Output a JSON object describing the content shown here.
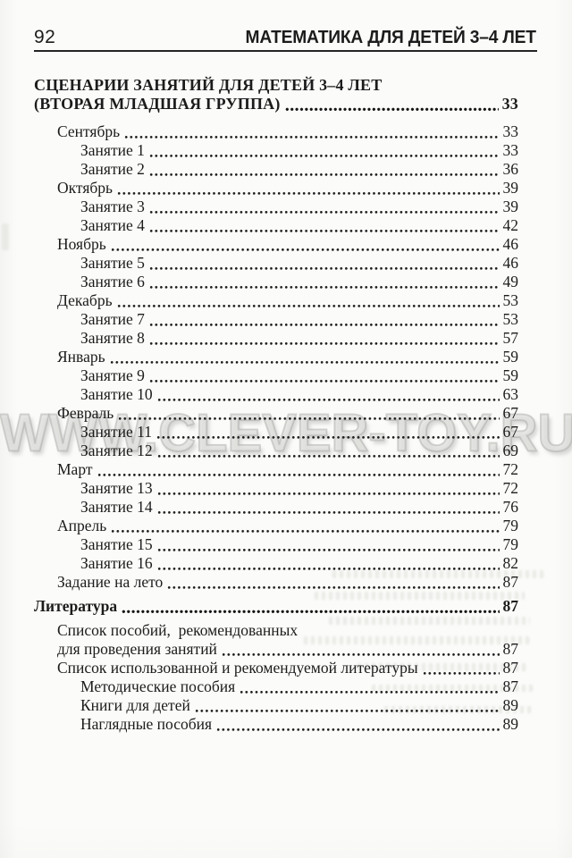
{
  "ink_color": "#1c1c1c",
  "watermark_color": "#c9c9c7",
  "header": {
    "page_number": "92",
    "running_title": "МАТЕМАТИКА ДЛЯ ДЕТЕЙ 3–4 ЛЕТ"
  },
  "watermark": {
    "text": "WWW.CLEVER-TOY.RU"
  },
  "toc": {
    "title_line1": "СЦЕНАРИИ ЗАНЯТИЙ ДЛЯ ДЕТЕЙ 3–4 ЛЕТ",
    "title_line2": "(ВТОРАЯ МЛАДШАЯ ГРУППА)",
    "title_page": "33",
    "entries": [
      {
        "label": "Сентябрь",
        "page": "33",
        "level": 1,
        "bold": false
      },
      {
        "label": "Занятие 1",
        "page": "33",
        "level": 2,
        "bold": false
      },
      {
        "label": "Занятие 2",
        "page": "36",
        "level": 2,
        "bold": false
      },
      {
        "label": "Октябрь",
        "page": "39",
        "level": 1,
        "bold": false
      },
      {
        "label": "Занятие 3",
        "page": "39",
        "level": 2,
        "bold": false
      },
      {
        "label": "Занятие 4",
        "page": "42",
        "level": 2,
        "bold": false
      },
      {
        "label": "Ноябрь",
        "page": "46",
        "level": 1,
        "bold": false
      },
      {
        "label": "Занятие 5",
        "page": "46",
        "level": 2,
        "bold": false
      },
      {
        "label": "Занятие 6",
        "page": "49",
        "level": 2,
        "bold": false
      },
      {
        "label": "Декабрь",
        "page": "53",
        "level": 1,
        "bold": false
      },
      {
        "label": "Занятие 7",
        "page": "53",
        "level": 2,
        "bold": false
      },
      {
        "label": "Занятие 8",
        "page": "57",
        "level": 2,
        "bold": false
      },
      {
        "label": "Январь",
        "page": "59",
        "level": 1,
        "bold": false
      },
      {
        "label": "Занятие 9",
        "page": "59",
        "level": 2,
        "bold": false
      },
      {
        "label": "Занятие 10",
        "page": "63",
        "level": 2,
        "bold": false
      },
      {
        "label": "Февраль",
        "page": "67",
        "level": 1,
        "bold": false
      },
      {
        "label": "Занятие 11",
        "page": "67",
        "level": 2,
        "bold": false
      },
      {
        "label": "Занятие 12",
        "page": "69",
        "level": 2,
        "bold": false
      },
      {
        "label": "Март",
        "page": "72",
        "level": 1,
        "bold": false
      },
      {
        "label": "Занятие 13",
        "page": "72",
        "level": 2,
        "bold": false
      },
      {
        "label": "Занятие 14",
        "page": "76",
        "level": 2,
        "bold": false
      },
      {
        "label": "Апрель",
        "page": "79",
        "level": 1,
        "bold": false
      },
      {
        "label": "Занятие 15",
        "page": "79",
        "level": 2,
        "bold": false
      },
      {
        "label": "Занятие 16",
        "page": "82",
        "level": 2,
        "bold": false
      },
      {
        "label": "Задание на лето",
        "page": "87",
        "level": 1,
        "bold": false
      },
      {
        "label": "Литература",
        "page": "87",
        "level": 0,
        "bold": true
      },
      {
        "label": "Список пособий,  рекомендованных",
        "page": "",
        "level": 1,
        "bold": false
      },
      {
        "label": "для проведения занятий",
        "page": "87",
        "level": 1,
        "bold": false
      },
      {
        "label": "Список использованной и рекомендуемой литературы",
        "page": "87",
        "level": 1,
        "bold": false
      },
      {
        "label": "Методические пособия",
        "page": "87",
        "level": 2,
        "bold": false
      },
      {
        "label": "Книги для детей",
        "page": "89",
        "level": 2,
        "bold": false
      },
      {
        "label": "Наглядные пособия",
        "page": "89",
        "level": 2,
        "bold": false
      }
    ]
  }
}
